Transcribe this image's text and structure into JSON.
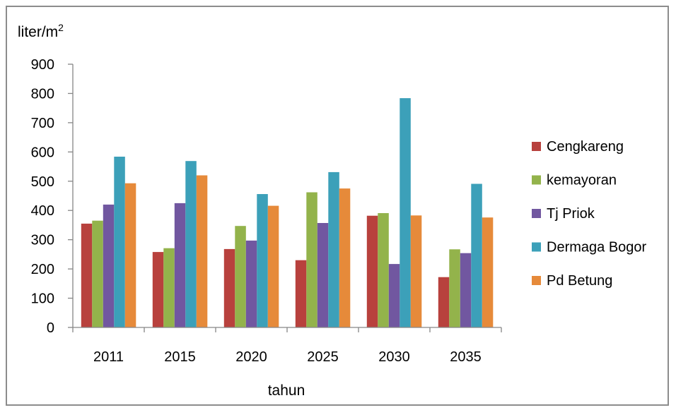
{
  "chart_data": {
    "type": "bar",
    "ylabel_main": "liter/m",
    "ylabel_sup": "2",
    "xlabel": "tahun",
    "ylim": [
      0,
      900
    ],
    "yticks": [
      0,
      100,
      200,
      300,
      400,
      500,
      600,
      700,
      800,
      900
    ],
    "categories": [
      "2011",
      "2015",
      "2020",
      "2025",
      "2030",
      "2035"
    ],
    "series": [
      {
        "name": "Cengkareng",
        "color": "#b8413d",
        "values": [
          355,
          258,
          268,
          230,
          382,
          172
        ]
      },
      {
        "name": "kemayoran",
        "color": "#93b34b",
        "values": [
          365,
          271,
          347,
          462,
          391,
          267
        ]
      },
      {
        "name": "Tj Priok",
        "color": "#7157a0",
        "values": [
          420,
          425,
          297,
          357,
          217,
          254
        ]
      },
      {
        "name": "Dermaga Bogor",
        "color": "#3ca0b9",
        "values": [
          584,
          569,
          456,
          531,
          784,
          491
        ]
      },
      {
        "name": "Pd Betung",
        "color": "#e68a3a",
        "values": [
          493,
          520,
          416,
          475,
          383,
          376
        ]
      }
    ],
    "grid": false,
    "legend_position": "right"
  }
}
